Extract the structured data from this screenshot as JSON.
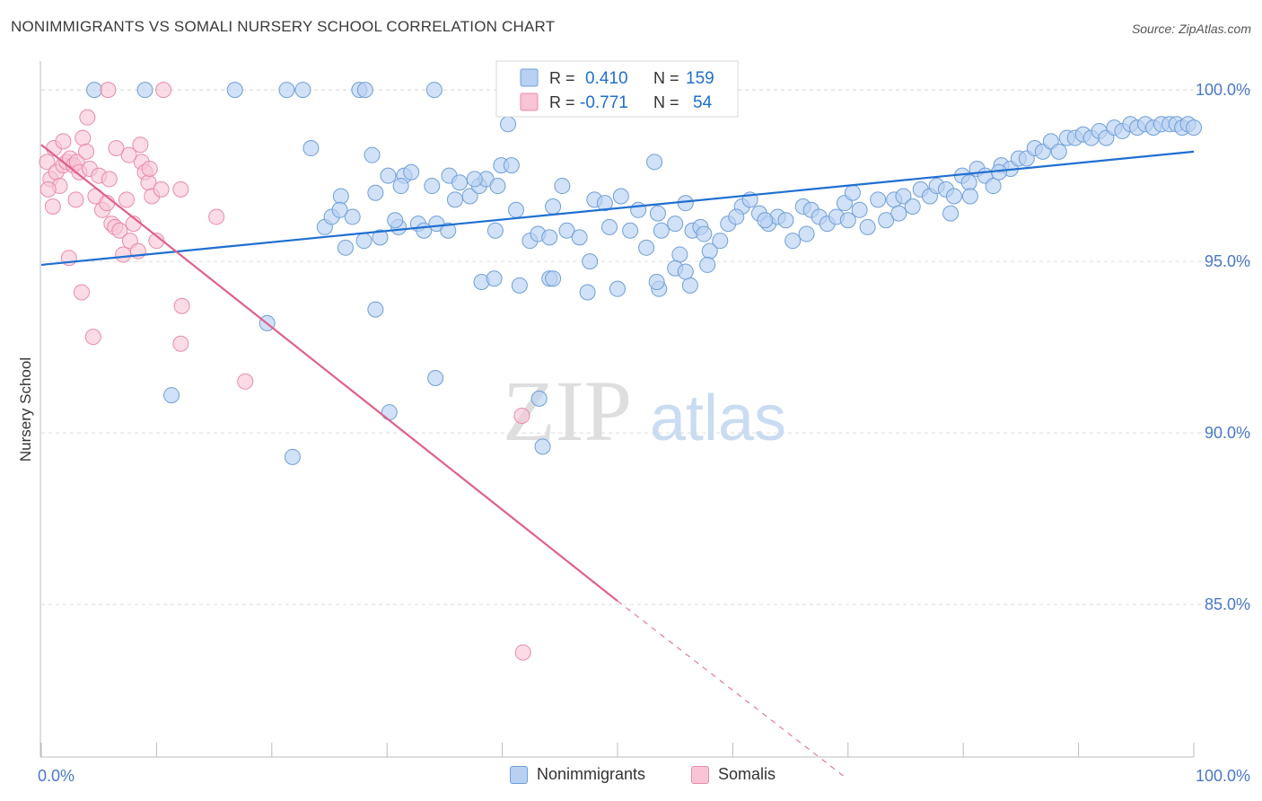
{
  "header": {
    "title": "NONIMMIGRANTS VS SOMALI NURSERY SCHOOL CORRELATION CHART",
    "source": "Source: ZipAtlas.com"
  },
  "watermark": {
    "zip": "ZIP",
    "atlas": "atlas"
  },
  "legend_box": {
    "rows": [
      {
        "r_label": "R =",
        "r_value": "0.410",
        "n_label": "N =",
        "n_value": "159"
      },
      {
        "r_label": "R =",
        "r_value": "-0.771",
        "n_label": "N =",
        "n_value": "54"
      }
    ]
  },
  "colors": {
    "blue_fill": "#b8d1f3",
    "blue_stroke": "#6f9fd8",
    "blue_line": "#1f6fd1",
    "pink_fill": "#f8c4d6",
    "pink_stroke": "#e98aab",
    "pink_line": "#e0608a",
    "tick_label": "#4a78c8",
    "grid": "#dcdcdc"
  },
  "chart_data": {
    "type": "scatter",
    "title": "NONIMMIGRANTS VS SOMALI NURSERY SCHOOL CORRELATION CHART",
    "xlabel": "",
    "ylabel": "Nursery School",
    "xlim": [
      0,
      100
    ],
    "ylim": [
      80.5,
      100.5
    ],
    "x_tick_labels": [
      "0.0%",
      "100.0%"
    ],
    "y_ticks": [
      85,
      90,
      95,
      100
    ],
    "y_tick_labels": [
      "85.0%",
      "90.0%",
      "95.0%",
      "100.0%"
    ],
    "grid": true,
    "legend": [
      "Nonimmigrants",
      "Somalis"
    ],
    "series": [
      {
        "name": "Nonimmigrants",
        "r": 0.41,
        "n": 159,
        "trend": {
          "x": [
            0,
            100
          ],
          "y": [
            94.9,
            98.2
          ]
        },
        "points": [
          [
            4.6,
            100
          ],
          [
            9.0,
            100
          ],
          [
            16.8,
            100
          ],
          [
            21.3,
            100
          ],
          [
            22.7,
            100
          ],
          [
            27.6,
            100
          ],
          [
            28.1,
            100
          ],
          [
            34.1,
            100
          ],
          [
            23.4,
            98.3
          ],
          [
            28.7,
            98.1
          ],
          [
            30.1,
            97.5
          ],
          [
            31.5,
            97.5
          ],
          [
            24.6,
            96.0
          ],
          [
            25.2,
            96.3
          ],
          [
            26.0,
            96.9
          ],
          [
            26.4,
            95.4
          ],
          [
            27.0,
            96.3
          ],
          [
            28.0,
            95.6
          ],
          [
            29.4,
            95.7
          ],
          [
            31.0,
            96.0
          ],
          [
            31.2,
            97.2
          ],
          [
            32.7,
            96.1
          ],
          [
            33.2,
            95.9
          ],
          [
            34.3,
            96.1
          ],
          [
            35.3,
            95.9
          ],
          [
            35.4,
            97.5
          ],
          [
            36.3,
            97.3
          ],
          [
            37.2,
            96.9
          ],
          [
            38.0,
            97.2
          ],
          [
            38.6,
            97.4
          ],
          [
            39.6,
            97.2
          ],
          [
            39.9,
            97.8
          ],
          [
            40.8,
            97.8
          ],
          [
            42.4,
            95.6
          ],
          [
            43.1,
            95.8
          ],
          [
            44.4,
            96.6
          ],
          [
            45.2,
            97.2
          ],
          [
            45.6,
            95.9
          ],
          [
            46.7,
            95.7
          ],
          [
            48.0,
            96.8
          ],
          [
            48.9,
            96.7
          ],
          [
            50.3,
            96.9
          ],
          [
            51.1,
            95.9
          ],
          [
            51.8,
            96.5
          ],
          [
            52.5,
            95.4
          ],
          [
            53.2,
            97.9
          ],
          [
            53.8,
            95.9
          ],
          [
            55.0,
            96.1
          ],
          [
            55.9,
            96.7
          ],
          [
            56.5,
            95.9
          ],
          [
            57.2,
            96.0
          ],
          [
            58.0,
            95.3
          ],
          [
            58.9,
            95.6
          ],
          [
            59.6,
            96.1
          ],
          [
            60.8,
            96.6
          ],
          [
            61.5,
            96.8
          ],
          [
            62.3,
            96.4
          ],
          [
            63.1,
            96.1
          ],
          [
            63.9,
            96.3
          ],
          [
            64.6,
            96.2
          ],
          [
            65.2,
            95.6
          ],
          [
            66.1,
            96.6
          ],
          [
            66.8,
            96.5
          ],
          [
            67.5,
            96.3
          ],
          [
            68.2,
            96.1
          ],
          [
            69.0,
            96.3
          ],
          [
            69.7,
            96.7
          ],
          [
            70.4,
            97.0
          ],
          [
            71.0,
            96.5
          ],
          [
            71.7,
            96.0
          ],
          [
            72.6,
            96.8
          ],
          [
            73.3,
            96.2
          ],
          [
            74.0,
            96.8
          ],
          [
            74.8,
            96.9
          ],
          [
            75.6,
            96.6
          ],
          [
            76.3,
            97.1
          ],
          [
            77.1,
            96.9
          ],
          [
            77.7,
            97.2
          ],
          [
            78.5,
            97.1
          ],
          [
            79.2,
            96.9
          ],
          [
            79.9,
            97.5
          ],
          [
            80.5,
            97.3
          ],
          [
            81.2,
            97.7
          ],
          [
            81.9,
            97.5
          ],
          [
            82.6,
            97.2
          ],
          [
            83.3,
            97.8
          ],
          [
            84.1,
            97.7
          ],
          [
            84.8,
            98.0
          ],
          [
            85.5,
            98.0
          ],
          [
            86.2,
            98.3
          ],
          [
            86.9,
            98.2
          ],
          [
            87.6,
            98.5
          ],
          [
            88.3,
            98.2
          ],
          [
            89.0,
            98.6
          ],
          [
            89.7,
            98.6
          ],
          [
            90.4,
            98.7
          ],
          [
            91.1,
            98.6
          ],
          [
            91.8,
            98.8
          ],
          [
            92.4,
            98.6
          ],
          [
            93.1,
            98.9
          ],
          [
            93.8,
            98.8
          ],
          [
            94.5,
            99.0
          ],
          [
            95.1,
            98.9
          ],
          [
            95.8,
            99.0
          ],
          [
            96.5,
            98.9
          ],
          [
            97.2,
            99.0
          ],
          [
            97.9,
            99.0
          ],
          [
            98.5,
            99.0
          ],
          [
            99.0,
            98.9
          ],
          [
            99.5,
            99.0
          ],
          [
            100.0,
            98.9
          ],
          [
            83.1,
            97.6
          ],
          [
            80.6,
            96.9
          ],
          [
            78.9,
            96.4
          ],
          [
            74.4,
            96.4
          ],
          [
            70.0,
            96.2
          ],
          [
            66.4,
            95.8
          ],
          [
            62.8,
            96.2
          ],
          [
            60.3,
            96.3
          ],
          [
            57.5,
            95.8
          ],
          [
            55.4,
            95.2
          ],
          [
            53.5,
            96.4
          ],
          [
            49.3,
            96.0
          ],
          [
            47.6,
            95.0
          ],
          [
            44.1,
            95.7
          ],
          [
            41.2,
            96.5
          ],
          [
            39.4,
            95.9
          ],
          [
            37.6,
            97.4
          ],
          [
            35.9,
            96.8
          ],
          [
            33.9,
            97.2
          ],
          [
            32.1,
            97.6
          ],
          [
            30.7,
            96.2
          ],
          [
            29.0,
            97.0
          ],
          [
            25.9,
            96.5
          ],
          [
            38.2,
            94.4
          ],
          [
            39.3,
            94.5
          ],
          [
            41.5,
            94.3
          ],
          [
            44.1,
            94.5
          ],
          [
            44.4,
            94.5
          ],
          [
            47.4,
            94.1
          ],
          [
            50.0,
            94.2
          ],
          [
            53.6,
            94.2
          ],
          [
            53.4,
            94.4
          ],
          [
            55.0,
            94.8
          ],
          [
            56.3,
            94.3
          ],
          [
            57.8,
            94.9
          ],
          [
            55.9,
            94.7
          ],
          [
            11.3,
            91.1
          ],
          [
            19.6,
            93.2
          ],
          [
            21.8,
            89.3
          ],
          [
            29.0,
            93.6
          ],
          [
            30.2,
            90.6
          ],
          [
            34.2,
            91.6
          ],
          [
            43.2,
            91.0
          ],
          [
            43.5,
            89.6
          ],
          [
            40.5,
            99.0
          ]
        ]
      },
      {
        "name": "Somalis",
        "r": -0.771,
        "n": 54,
        "trend": {
          "x": [
            0,
            50
          ],
          "y": [
            98.4,
            85.1
          ],
          "dashed_extension": {
            "x": [
              50,
              69.6
            ],
            "y": [
              85.1,
              80.0
            ]
          }
        },
        "points": [
          [
            5.8,
            100
          ],
          [
            10.6,
            100
          ],
          [
            0.5,
            97.9
          ],
          [
            0.8,
            97.4
          ],
          [
            1.1,
            98.3
          ],
          [
            1.3,
            97.6
          ],
          [
            1.6,
            97.2
          ],
          [
            1.9,
            97.8
          ],
          [
            2.2,
            97.9
          ],
          [
            2.5,
            98.0
          ],
          [
            2.8,
            97.8
          ],
          [
            3.1,
            97.9
          ],
          [
            3.3,
            97.6
          ],
          [
            3.6,
            98.6
          ],
          [
            3.9,
            98.2
          ],
          [
            4.2,
            97.7
          ],
          [
            4.7,
            96.9
          ],
          [
            5.0,
            97.5
          ],
          [
            5.3,
            96.5
          ],
          [
            5.7,
            96.7
          ],
          [
            6.1,
            96.1
          ],
          [
            6.4,
            96.0
          ],
          [
            6.8,
            95.9
          ],
          [
            7.1,
            95.2
          ],
          [
            7.4,
            96.8
          ],
          [
            7.7,
            95.6
          ],
          [
            8.0,
            96.1
          ],
          [
            8.4,
            95.3
          ],
          [
            8.7,
            97.9
          ],
          [
            9.0,
            97.6
          ],
          [
            9.3,
            97.3
          ],
          [
            9.6,
            96.9
          ],
          [
            10.0,
            95.6
          ],
          [
            4.0,
            99.2
          ],
          [
            7.6,
            98.1
          ],
          [
            8.6,
            98.4
          ],
          [
            1.9,
            98.5
          ],
          [
            0.6,
            97.1
          ],
          [
            2.4,
            95.1
          ],
          [
            3.5,
            94.1
          ],
          [
            4.5,
            92.8
          ],
          [
            12.2,
            93.7
          ],
          [
            12.1,
            92.6
          ],
          [
            12.1,
            97.1
          ],
          [
            15.2,
            96.3
          ],
          [
            17.7,
            91.5
          ],
          [
            10.4,
            97.1
          ],
          [
            1.0,
            96.6
          ],
          [
            3.0,
            96.8
          ],
          [
            6.5,
            98.3
          ],
          [
            9.4,
            97.7
          ],
          [
            5.9,
            97.4
          ],
          [
            41.7,
            90.5
          ],
          [
            41.8,
            83.6
          ]
        ]
      }
    ]
  },
  "legend_bottom": {
    "items": [
      "Nonimmigrants",
      "Somalis"
    ]
  }
}
